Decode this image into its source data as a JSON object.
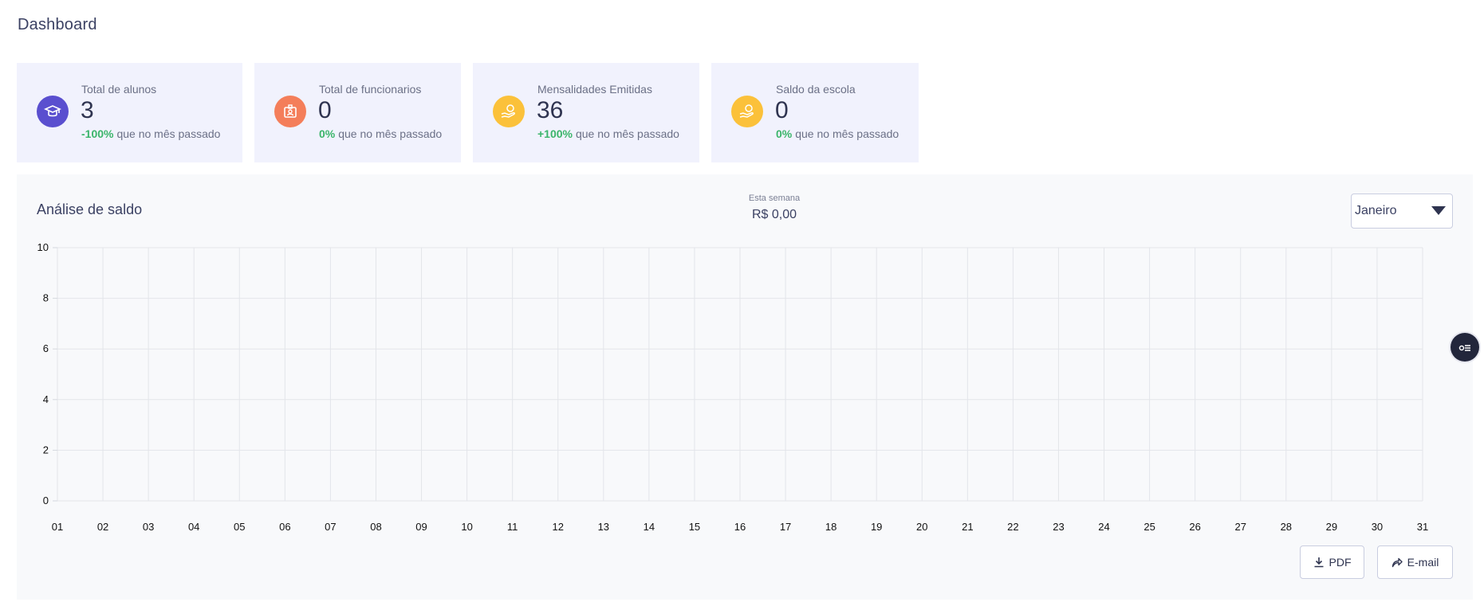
{
  "page": {
    "title": "Dashboard"
  },
  "cards": [
    {
      "label": "Total de alunos",
      "value": "3",
      "change_pct": "-100%",
      "change_text": "que no mês passado",
      "icon": "graduation-cap-icon",
      "color": "#5a4fcf"
    },
    {
      "label": "Total de funcionarios",
      "value": "0",
      "change_pct": "0%",
      "change_text": "que no mês passado",
      "icon": "id-badge-icon",
      "color": "#f47e5a"
    },
    {
      "label": "Mensalidades Emitidas",
      "value": "36",
      "change_pct": "+100%",
      "change_text": "que no mês passado",
      "icon": "hand-coin-icon",
      "color": "#fbc13a"
    },
    {
      "label": "Saldo da escola",
      "value": "0",
      "change_pct": "0%",
      "change_text": "que no mês passado",
      "icon": "hand-coin-icon",
      "color": "#fbc13a"
    }
  ],
  "panel": {
    "title": "Análise de saldo",
    "week_label": "Esta semana",
    "week_value": "R$ 0,00",
    "month_selected": "Janeiro",
    "pdf_label": "PDF",
    "email_label": "E-mail"
  },
  "chart_data": {
    "type": "line",
    "categories": [
      "01",
      "02",
      "03",
      "04",
      "05",
      "06",
      "07",
      "08",
      "09",
      "10",
      "11",
      "12",
      "13",
      "14",
      "15",
      "16",
      "17",
      "18",
      "19",
      "20",
      "21",
      "22",
      "23",
      "24",
      "25",
      "26",
      "27",
      "28",
      "29",
      "30",
      "31"
    ],
    "series": [],
    "ylim": [
      0,
      10
    ],
    "yticks": [
      "0",
      "2",
      "4",
      "6",
      "8",
      "10"
    ],
    "grid": true,
    "title": "",
    "xlabel": "",
    "ylabel": ""
  }
}
